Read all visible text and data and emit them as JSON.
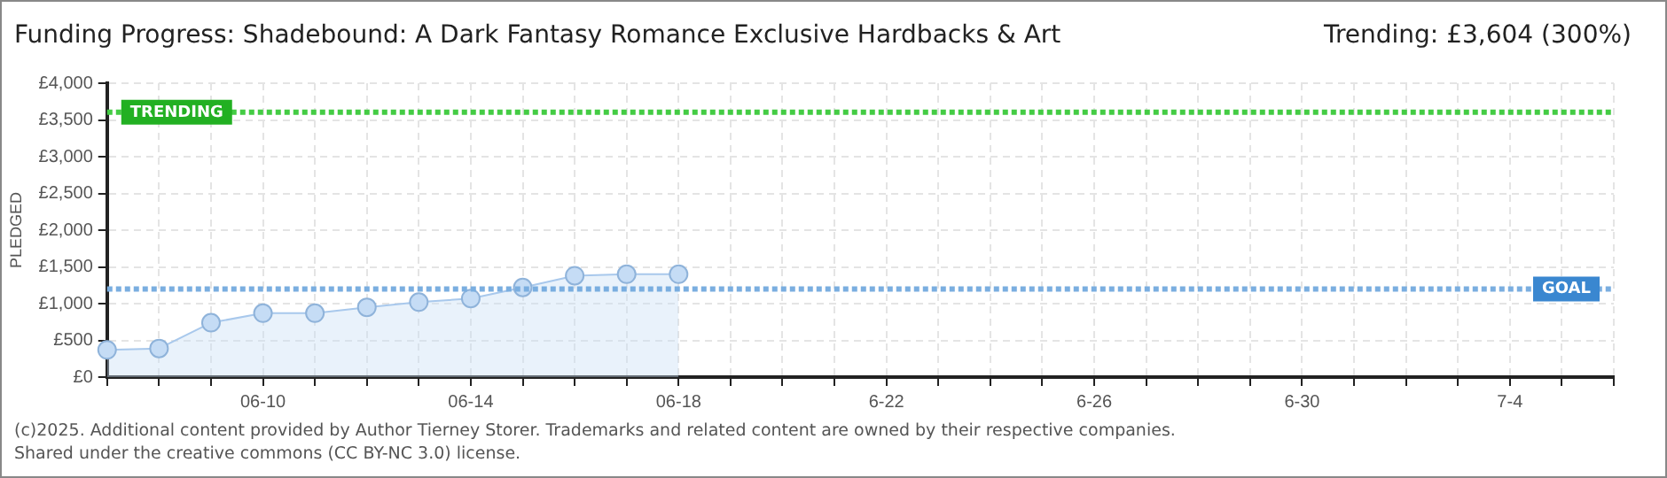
{
  "chart_data": {
    "type": "area",
    "title": "Funding Progress: Shadebound: A Dark Fantasy Romance Exclusive Hardbacks & Art",
    "ylabel": "PLEDGED",
    "categories": [
      null,
      null,
      null,
      "06-10",
      null,
      null,
      null,
      "06-14",
      null,
      null,
      null,
      "06-18",
      null,
      null,
      null,
      "6-22",
      null,
      null,
      null,
      "6-26",
      null,
      null,
      null,
      "6-30",
      null,
      null,
      null,
      "7-4",
      null,
      null
    ],
    "series": [
      {
        "color": "#a8c8ec",
        "values": [
          370,
          390,
          740,
          870,
          870,
          950,
          1020,
          1070,
          1220,
          1380,
          1400,
          1400,
          null,
          null,
          null,
          null,
          null,
          null,
          null,
          null,
          null,
          null,
          null,
          null,
          null,
          null,
          null,
          null,
          null,
          null
        ]
      }
    ],
    "ylim": [
      0,
      4000
    ],
    "yticks": [
      {
        "value": 0,
        "label": "£0"
      },
      {
        "value": 500,
        "label": "£500"
      },
      {
        "value": 1000,
        "label": "£1,000"
      },
      {
        "value": 1500,
        "label": "£1,500"
      },
      {
        "value": 2000,
        "label": "£2,000"
      },
      {
        "value": 2500,
        "label": "£2,500"
      },
      {
        "value": 3000,
        "label": "£3,000"
      },
      {
        "value": 3500,
        "label": "£3,500"
      },
      {
        "value": 4000,
        "label": "£4,000"
      }
    ],
    "ref_lines": [
      {
        "axis": "y",
        "value": 3604,
        "label": "TRENDING",
        "color": "#44cc44",
        "line_style": "dotted"
      },
      {
        "axis": "y",
        "value": 1200,
        "label": "GOAL",
        "color": "#7aaee0",
        "line_style": "dotted"
      }
    ],
    "annotations": [
      "Trending:  £3,604 (300%)",
      "(c)2025. Additional content provided by Author Tierney Storer. Trademarks and related content are owned by their respective companies.",
      "Shared under the creative commons (CC BY-NC 3.0) license."
    ],
    "grid": true,
    "marker": "circle",
    "legend": false
  }
}
